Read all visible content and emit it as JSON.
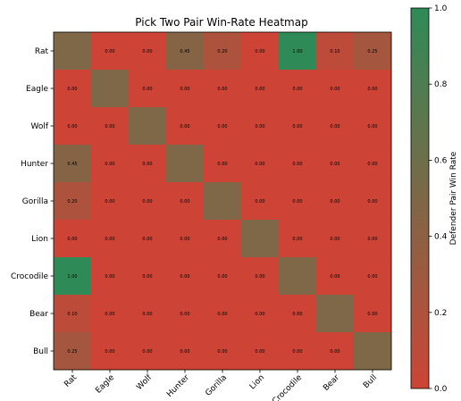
{
  "chart_data": {
    "type": "heatmap",
    "title": "Pick Two Pair Win-Rate Heatmap",
    "row_labels": [
      "Rat",
      "Eagle",
      "Wolf",
      "Hunter",
      "Gorilla",
      "Lion",
      "Crocodile",
      "Bear",
      "Bull"
    ],
    "col_labels": [
      "Rat",
      "Eagle",
      "Wolf",
      "Hunter",
      "Gorilla",
      "Lion",
      "Crocodile",
      "Bear",
      "Bull"
    ],
    "values": [
      [
        null,
        0.0,
        0.0,
        0.45,
        0.2,
        0.0,
        1.0,
        0.1,
        0.25
      ],
      [
        0.0,
        null,
        0.0,
        0.0,
        0.0,
        0.0,
        0.0,
        0.0,
        0.0
      ],
      [
        0.0,
        0.0,
        null,
        0.0,
        0.0,
        0.0,
        0.0,
        0.0,
        0.0
      ],
      [
        0.45,
        0.0,
        0.0,
        null,
        0.0,
        0.0,
        0.0,
        0.0,
        0.0
      ],
      [
        0.2,
        0.0,
        0.0,
        0.0,
        null,
        0.0,
        0.0,
        0.0,
        0.0
      ],
      [
        0.0,
        0.0,
        0.0,
        0.0,
        0.0,
        null,
        0.0,
        0.0,
        0.0
      ],
      [
        1.0,
        0.0,
        0.0,
        0.0,
        0.0,
        0.0,
        null,
        0.0,
        0.0
      ],
      [
        0.1,
        0.0,
        0.0,
        0.0,
        0.0,
        0.0,
        0.0,
        null,
        0.0
      ],
      [
        0.25,
        0.0,
        0.0,
        0.0,
        0.0,
        0.0,
        0.0,
        0.0,
        null
      ]
    ],
    "diagonal_value": 0.5,
    "colorbar": {
      "label": "Defender Pair Win Rate",
      "range": [
        0.0,
        1.0
      ],
      "ticks": [
        "0.0",
        "0.2",
        "0.4",
        "0.6",
        "0.8",
        "1.0"
      ],
      "color_low": "#cd4436",
      "color_high": "#2e8b57"
    },
    "grid": false
  }
}
